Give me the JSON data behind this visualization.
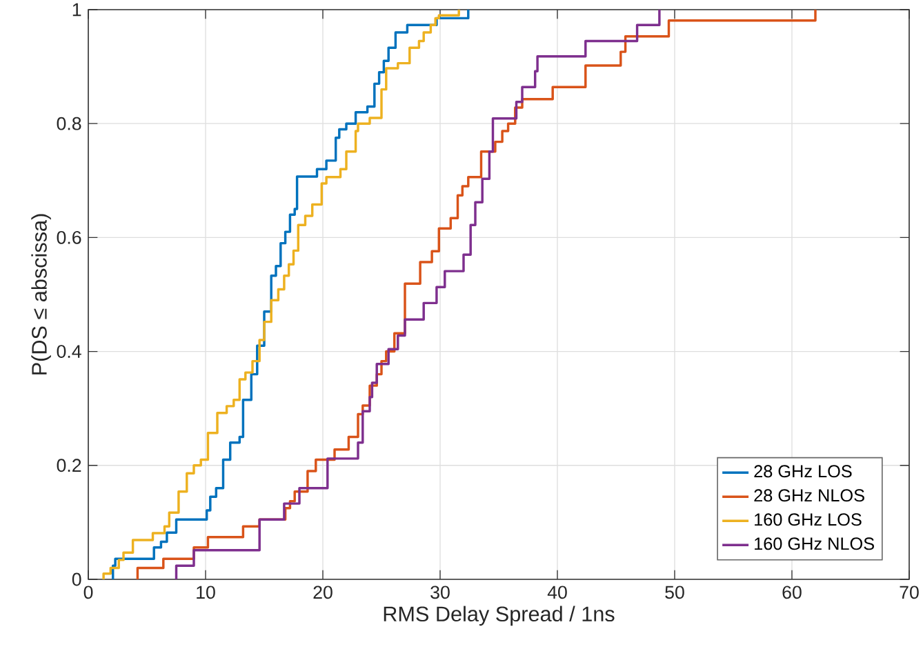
{
  "chart_data": {
    "type": "step",
    "xlabel": "RMS Delay Spread / 1ns",
    "ylabel": "P(DS ≤ abscissa)",
    "xlim": [
      0,
      70
    ],
    "ylim": [
      0,
      1
    ],
    "xticks": [
      0,
      10,
      20,
      30,
      40,
      50,
      60,
      70
    ],
    "yticks": [
      0,
      0.2,
      0.4,
      0.6,
      0.8,
      1
    ],
    "grid": true,
    "legend": "bottom right",
    "marker": "none",
    "line_style": "solid",
    "series": [
      {
        "name": "28 GHz LOS",
        "color": "#0072bd",
        "x": [
          2.1,
          2.1,
          2.3,
          5.6,
          6.2,
          6.7,
          7.5,
          10.1,
          10.4,
          10.9,
          11.5,
          12.1,
          12.9,
          13.2,
          13.9,
          14.4,
          15.0,
          15.6,
          16.0,
          16.4,
          16.8,
          17.2,
          17.6,
          17.8,
          19.5,
          20.3,
          21.1,
          21.4,
          22.0,
          22.8,
          23.8,
          24.4,
          24.8,
          25.2,
          25.6,
          26.2,
          27.2,
          29.7,
          32.4
        ],
        "values": [
          0,
          0.024,
          0.036,
          0.056,
          0.066,
          0.082,
          0.105,
          0.121,
          0.145,
          0.16,
          0.21,
          0.24,
          0.25,
          0.315,
          0.36,
          0.41,
          0.47,
          0.533,
          0.55,
          0.59,
          0.61,
          0.64,
          0.65,
          0.707,
          0.72,
          0.735,
          0.775,
          0.79,
          0.8,
          0.82,
          0.83,
          0.87,
          0.89,
          0.91,
          0.933,
          0.96,
          0.973,
          0.985,
          1
        ]
      },
      {
        "name": "28 GHz NLOS",
        "color": "#d95319",
        "x": [
          4.2,
          4.2,
          6.4,
          9.0,
          10.2,
          13.2,
          14.6,
          16.8,
          17.2,
          17.6,
          18.7,
          19.4,
          21.0,
          22.2,
          23.0,
          23.4,
          24.0,
          24.6,
          25.0,
          25.4,
          26.1,
          27.0,
          28.3,
          29.3,
          29.9,
          30.9,
          31.5,
          31.9,
          32.4,
          33.5,
          34.7,
          35.3,
          35.8,
          36.4,
          37.0,
          39.6,
          42.4,
          45.4,
          45.8,
          49.5,
          62.0
        ],
        "values": [
          0,
          0.02,
          0.036,
          0.056,
          0.074,
          0.093,
          0.105,
          0.125,
          0.137,
          0.154,
          0.19,
          0.21,
          0.228,
          0.25,
          0.29,
          0.305,
          0.34,
          0.36,
          0.383,
          0.4,
          0.432,
          0.519,
          0.557,
          0.576,
          0.616,
          0.634,
          0.674,
          0.69,
          0.706,
          0.751,
          0.768,
          0.787,
          0.8,
          0.828,
          0.843,
          0.864,
          0.902,
          0.926,
          0.953,
          0.981,
          1
        ]
      },
      {
        "name": "160 GHz LOS",
        "color": "#edb120",
        "x": [
          1.3,
          1.3,
          1.9,
          2.6,
          3.0,
          3.8,
          5.5,
          6.5,
          6.9,
          7.7,
          8.4,
          9.0,
          9.6,
          10.2,
          11.0,
          11.8,
          12.4,
          12.9,
          13.4,
          14.0,
          14.6,
          15.0,
          15.6,
          16.2,
          16.7,
          17.1,
          17.5,
          17.9,
          18.5,
          19.1,
          19.9,
          20.3,
          21.5,
          22.0,
          22.8,
          23.0,
          24.0,
          25.0,
          25.4,
          26.4,
          27.4,
          28.2,
          28.6,
          29.2,
          29.6,
          29.9,
          31.6
        ],
        "values": [
          0,
          0.01,
          0.02,
          0.034,
          0.047,
          0.069,
          0.081,
          0.093,
          0.117,
          0.154,
          0.186,
          0.2,
          0.21,
          0.257,
          0.292,
          0.304,
          0.315,
          0.351,
          0.363,
          0.383,
          0.42,
          0.452,
          0.49,
          0.509,
          0.533,
          0.553,
          0.577,
          0.622,
          0.638,
          0.658,
          0.695,
          0.706,
          0.72,
          0.751,
          0.787,
          0.8,
          0.81,
          0.86,
          0.897,
          0.906,
          0.933,
          0.945,
          0.96,
          0.973,
          0.985,
          0.99,
          1
        ]
      },
      {
        "name": "160 GHz NLOS",
        "color": "#7e2f8e",
        "x": [
          7.5,
          7.5,
          9.0,
          14.6,
          16.7,
          18.0,
          20.4,
          23.0,
          23.4,
          24.0,
          24.2,
          24.6,
          25.6,
          26.4,
          27.0,
          28.6,
          29.7,
          30.4,
          32.0,
          32.6,
          33.0,
          33.6,
          34.2,
          34.5,
          36.5,
          37.0,
          38.1,
          38.3,
          42.4,
          46.8,
          48.7
        ],
        "values": [
          0,
          0.024,
          0.051,
          0.105,
          0.133,
          0.16,
          0.212,
          0.24,
          0.295,
          0.32,
          0.345,
          0.378,
          0.404,
          0.428,
          0.456,
          0.485,
          0.513,
          0.541,
          0.57,
          0.622,
          0.662,
          0.703,
          0.751,
          0.809,
          0.838,
          0.864,
          0.892,
          0.918,
          0.945,
          0.973,
          1
        ]
      }
    ]
  }
}
